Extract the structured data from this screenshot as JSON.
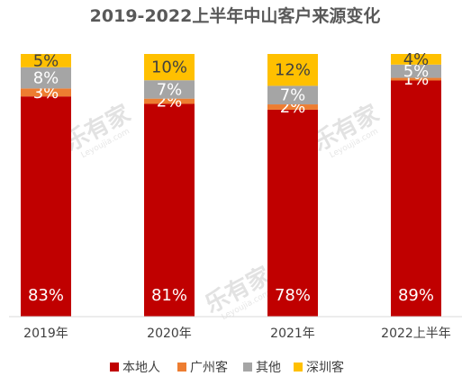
{
  "chart_data": {
    "type": "bar",
    "stacked": true,
    "title": "2019-2022上半年中山客户来源变化",
    "categories": [
      "2019年",
      "2020年",
      "2021年",
      "2022上半年"
    ],
    "series": [
      {
        "name": "本地人",
        "color": "#c00000",
        "values": [
          83,
          81,
          78,
          89
        ]
      },
      {
        "name": "广州客",
        "color": "#ed7d31",
        "values": [
          3,
          2,
          2,
          1
        ]
      },
      {
        "name": "其他",
        "color": "#a5a5a5",
        "values": [
          8,
          7,
          7,
          5
        ]
      },
      {
        "name": "深圳客",
        "color": "#ffc000",
        "values": [
          5,
          10,
          12,
          4
        ]
      }
    ],
    "value_suffix": "%",
    "ylim": [
      0,
      100
    ],
    "grid": false,
    "legend_position": "bottom",
    "watermark": "乐有家 Leyoujia.com"
  }
}
